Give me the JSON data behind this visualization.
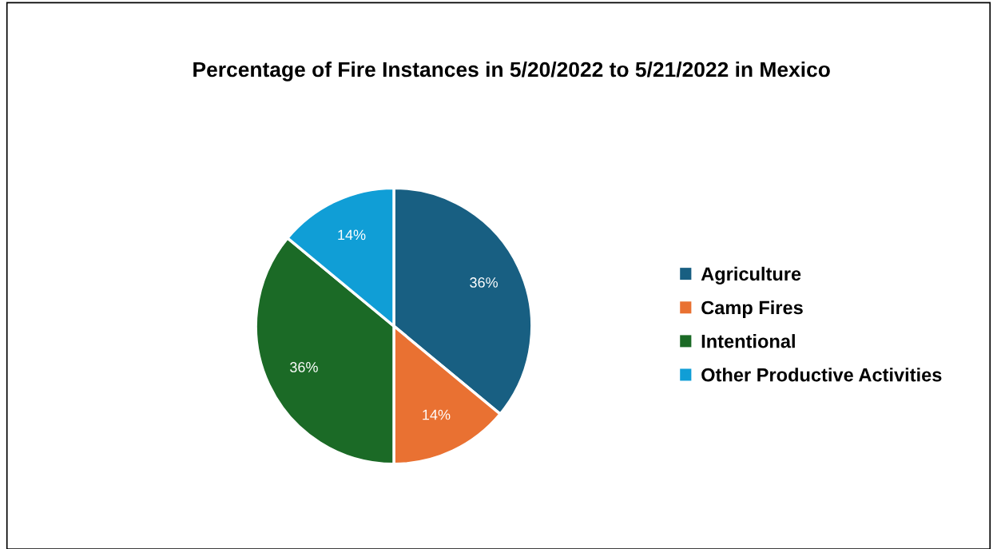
{
  "chart_data": {
    "type": "pie",
    "title": "Percentage of Fire Instances in 5/20/2022 to 5/21/2022 in Mexico",
    "categories": [
      "Agriculture",
      "Camp Fires",
      "Intentional",
      "Other Productive Activities"
    ],
    "values": [
      36,
      14,
      36,
      14
    ],
    "colors": [
      "#185f82",
      "#e97132",
      "#1b6a26",
      "#109ed6"
    ],
    "value_labels": [
      "36%",
      "14%",
      "36%",
      "14%"
    ],
    "legend": "right"
  }
}
